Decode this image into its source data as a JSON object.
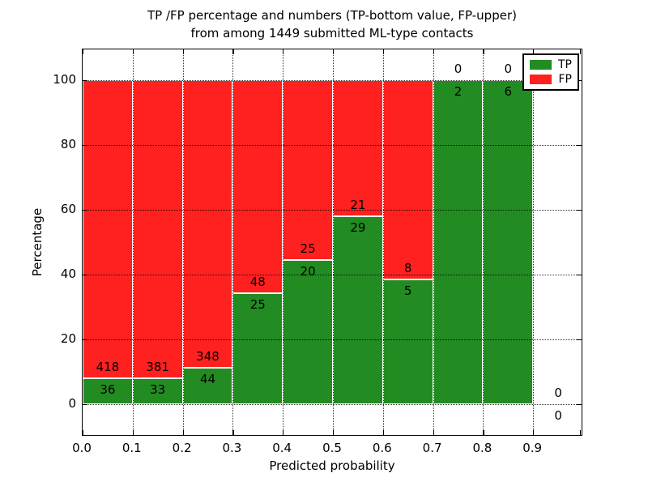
{
  "figure": {
    "title_line1": "TP /FP percentage and numbers (TP-bottom value, FP-upper)",
    "title_line2": "from among 1449 submitted ML-type contacts"
  },
  "chart_data": {
    "type": "bar",
    "stacked": true,
    "title": "TP /FP percentage and numbers (TP-bottom value, FP-upper) from among 1449 submitted ML-type contacts",
    "xlabel": "Predicted probability",
    "ylabel": "Percentage",
    "xlim": [
      0.0,
      1.0
    ],
    "ylim": [
      -10,
      110
    ],
    "x_tick_labels": [
      "0.0",
      "0.1",
      "0.2",
      "0.3",
      "0.4",
      "0.5",
      "0.6",
      "0.7",
      "0.8",
      "0.9"
    ],
    "y_tick_values": [
      0,
      20,
      40,
      60,
      80,
      100
    ],
    "grid": true,
    "grid_style": "dotted",
    "bin_edges": [
      0.0,
      0.1,
      0.2,
      0.3,
      0.4,
      0.5,
      0.6,
      0.7,
      0.8,
      0.9,
      1.0
    ],
    "series": [
      {
        "name": "TP",
        "color": "#228B22",
        "counts": [
          36,
          33,
          44,
          25,
          20,
          29,
          5,
          2,
          6,
          0
        ]
      },
      {
        "name": "FP",
        "color": "#FF2020",
        "counts": [
          418,
          381,
          348,
          48,
          25,
          21,
          8,
          0,
          0,
          0
        ]
      }
    ],
    "bar_unit": "percent of bin total (each bin stacked to 100%)",
    "total_contacts_shown_in_title": 1449,
    "legend": {
      "position": "upper right",
      "entries": [
        "TP",
        "FP"
      ]
    }
  },
  "colors": {
    "tp_green": "#228B22",
    "fp_red": "#FF2020",
    "background": "#FFFFFF",
    "text": "#000000",
    "bar_edge": "#FFFFFF"
  }
}
